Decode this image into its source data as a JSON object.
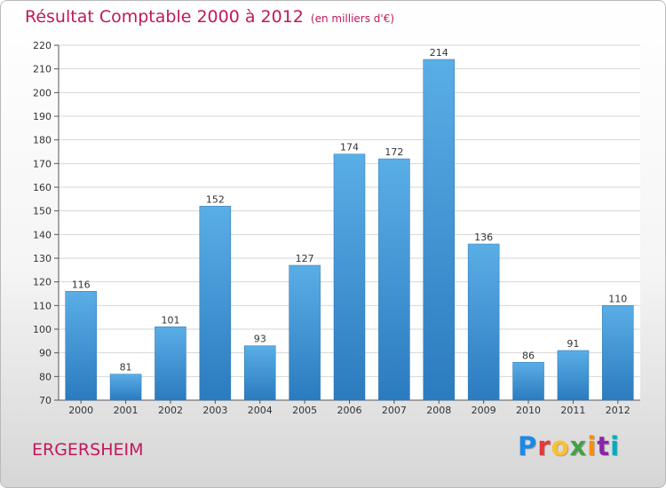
{
  "header": {
    "title": "Résultat Comptable 2000 à 2012",
    "subtitle": "(en milliers d'€)"
  },
  "footer": {
    "place": "ERGERSHEIM",
    "logo": "Proxiti",
    "logo_colors": [
      "#1e88e5",
      "#e53935",
      "#fbc02d",
      "#43a047",
      "#fb8c00",
      "#8e24aa",
      "#00acc1"
    ]
  },
  "colors": {
    "accent": "#c2185b",
    "bar_top": "#5aaee6",
    "bar_bottom": "#2b7bbf",
    "grid": "#d6d6d6"
  },
  "chart_data": {
    "type": "bar",
    "title": "Résultat Comptable 2000 à 2012",
    "subtitle": "(en milliers d'€)",
    "categories": [
      "2000",
      "2001",
      "2002",
      "2003",
      "2004",
      "2005",
      "2006",
      "2007",
      "2008",
      "2009",
      "2010",
      "2011",
      "2012"
    ],
    "values": [
      116,
      81,
      101,
      152,
      93,
      127,
      174,
      172,
      214,
      136,
      86,
      91,
      110
    ],
    "xlabel": "",
    "ylabel": "",
    "ylim": [
      70,
      220
    ],
    "yticks": [
      70,
      80,
      90,
      100,
      110,
      120,
      130,
      140,
      150,
      160,
      170,
      180,
      190,
      200,
      210,
      220
    ],
    "grid": true,
    "legend": "none"
  }
}
